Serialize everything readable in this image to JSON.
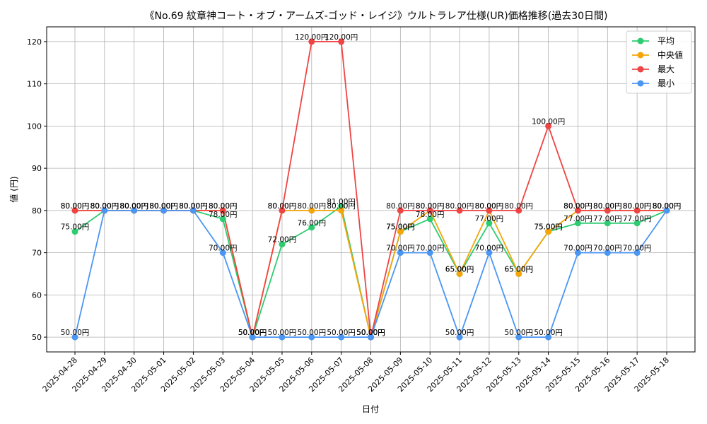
{
  "chart_data": {
    "type": "line",
    "title": "《No.69 紋章神コート・オブ・アームズ-ゴッド・レイジ》ウルトラレア仕様(UR)価格推移(過去30日間)",
    "xlabel": "日付",
    "ylabel": "値 (円)",
    "ylim": [
      46.5,
      123.5
    ],
    "yticks": [
      50,
      60,
      70,
      80,
      90,
      100,
      110,
      120
    ],
    "grid": true,
    "legend_position": "top-right",
    "label_suffix": "円",
    "categories": [
      "2025-04-28",
      "2025-04-29",
      "2025-04-30",
      "2025-05-01",
      "2025-05-02",
      "2025-05-03",
      "2025-05-04",
      "2025-05-05",
      "2025-05-06",
      "2025-05-07",
      "2025-05-08",
      "2025-05-09",
      "2025-05-10",
      "2025-05-11",
      "2025-05-12",
      "2025-05-13",
      "2025-05-14",
      "2025-05-15",
      "2025-05-16",
      "2025-05-17",
      "2025-05-18"
    ],
    "series": [
      {
        "name": "平均",
        "color": "#2ecc71",
        "values": [
          75,
          80,
          80,
          80,
          80,
          78,
          50,
          72,
          76,
          81,
          50,
          75,
          78,
          65,
          77,
          65,
          75,
          77,
          77,
          77,
          80
        ]
      },
      {
        "name": "中央値",
        "color": "#f5a50a",
        "values": [
          80,
          80,
          80,
          80,
          80,
          80,
          50,
          80,
          80,
          80,
          50,
          75,
          80,
          65,
          80,
          65,
          75,
          80,
          80,
          80,
          80
        ]
      },
      {
        "name": "最大",
        "color": "#ef4444",
        "values": [
          80,
          80,
          80,
          80,
          80,
          80,
          50,
          80,
          120,
          120,
          50,
          80,
          80,
          80,
          80,
          80,
          100,
          80,
          80,
          80,
          80
        ]
      },
      {
        "name": "最小",
        "color": "#4b96f3",
        "values": [
          50,
          80,
          80,
          80,
          80,
          70,
          50,
          50,
          50,
          50,
          50,
          70,
          70,
          50,
          70,
          50,
          50,
          70,
          70,
          70,
          80
        ]
      }
    ]
  }
}
